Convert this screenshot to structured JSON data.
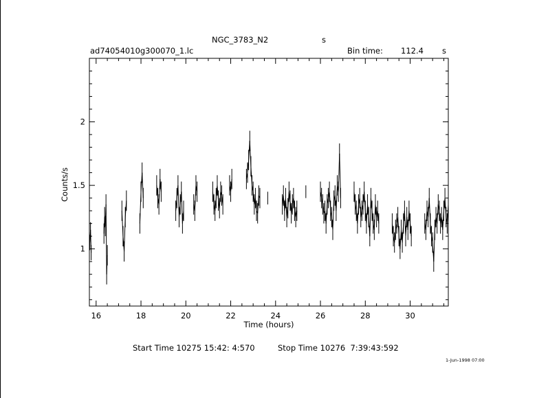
{
  "header": {
    "object": "NGC_3783_N2",
    "object_suffix": "s",
    "file": "ad74054010g300070_1.lc",
    "bin_label": "Bin time:",
    "bin_value": "112.4",
    "bin_unit": "s"
  },
  "footer": {
    "start": "Start Time 10275 15:42: 4:570",
    "stop": "Stop Time 10276  7:39:43:592",
    "stamp": "1-Jun-1998 07:00"
  },
  "chart_data": {
    "type": "line",
    "xlabel": "Time (hours)",
    "ylabel": "Counts/s",
    "xlim": [
      15.7,
      31.7
    ],
    "ylim": [
      0.55,
      2.5
    ],
    "x_ticks": [
      16,
      18,
      20,
      22,
      24,
      26,
      28,
      30
    ],
    "y_ticks": [
      1,
      1.5,
      2
    ],
    "x_tick_labels": [
      "16",
      "18",
      "20",
      "22",
      "24",
      "26",
      "28",
      "30"
    ],
    "y_tick_labels": [
      "1",
      "1.5",
      "2"
    ],
    "grid": false,
    "style": "error-bars",
    "segments": [
      {
        "x": [
          15.72,
          15.75,
          15.78
        ],
        "y": [
          1.05,
          1.15,
          0.97
        ],
        "err": 0.06
      },
      {
        "x": [
          16.35,
          16.38,
          16.41,
          16.44,
          16.47,
          16.5
        ],
        "y": [
          1.12,
          1.25,
          1.18,
          1.35,
          0.8,
          0.95
        ],
        "err": 0.08
      },
      {
        "x": [
          17.15,
          17.2,
          17.25,
          17.3,
          17.35
        ],
        "y": [
          1.3,
          1.1,
          0.98,
          1.25,
          1.38
        ],
        "err": 0.08
      },
      {
        "x": [
          17.95,
          18.0,
          18.05,
          18.1
        ],
        "y": [
          1.2,
          1.45,
          1.6,
          1.4
        ],
        "err": 0.08
      },
      {
        "x": [
          18.7,
          18.75,
          18.8,
          18.85,
          18.9
        ],
        "y": [
          1.5,
          1.4,
          1.35,
          1.55,
          1.45
        ],
        "err": 0.08
      },
      {
        "x": [
          19.55,
          19.6,
          19.65,
          19.7,
          19.75,
          19.8,
          19.85,
          19.9
        ],
        "y": [
          1.3,
          1.4,
          1.5,
          1.25,
          1.35,
          1.45,
          1.2,
          1.3
        ],
        "err": 0.08
      },
      {
        "x": [
          20.35,
          20.4,
          20.45,
          20.5
        ],
        "y": [
          1.35,
          1.3,
          1.5,
          1.45
        ],
        "err": 0.08
      },
      {
        "x": [
          21.2,
          21.25,
          21.3,
          21.35,
          21.4,
          21.45,
          21.5,
          21.55,
          21.6,
          21.65
        ],
        "y": [
          1.45,
          1.35,
          1.3,
          1.4,
          1.5,
          1.38,
          1.32,
          1.45,
          1.42,
          1.35
        ],
        "err": 0.08
      },
      {
        "x": [
          21.95,
          22.0,
          22.05
        ],
        "y": [
          1.5,
          1.45,
          1.55
        ],
        "err": 0.08
      },
      {
        "x": [
          22.7,
          22.75,
          22.8,
          22.85,
          22.9,
          22.95,
          23.0,
          23.05,
          23.1,
          23.15,
          23.2,
          23.25,
          23.3
        ],
        "y": [
          1.55,
          1.6,
          1.7,
          1.85,
          1.65,
          1.5,
          1.45,
          1.35,
          1.4,
          1.3,
          1.28,
          1.42,
          1.4
        ],
        "err": 0.08
      },
      {
        "x": [
          23.65
        ],
        "y": [
          1.4
        ],
        "err": 0.05
      },
      {
        "x": [
          24.3,
          24.35,
          24.4,
          24.45,
          24.5,
          24.55,
          24.6,
          24.65,
          24.7,
          24.75,
          24.8,
          24.85,
          24.9,
          24.95
        ],
        "y": [
          1.35,
          1.42,
          1.3,
          1.4,
          1.25,
          1.32,
          1.45,
          1.38,
          1.28,
          1.35,
          1.4,
          1.3,
          1.25,
          1.3
        ],
        "err": 0.08
      },
      {
        "x": [
          25.35
        ],
        "y": [
          1.45
        ],
        "err": 0.05
      },
      {
        "x": [
          26.0,
          26.05,
          26.1,
          26.15,
          26.2,
          26.25,
          26.3,
          26.35,
          26.4,
          26.45,
          26.5,
          26.55,
          26.6,
          26.65,
          26.7,
          26.75,
          26.8,
          26.85,
          26.9
        ],
        "y": [
          1.45,
          1.4,
          1.35,
          1.28,
          1.3,
          1.2,
          1.35,
          1.4,
          1.45,
          1.3,
          1.25,
          1.15,
          1.38,
          1.42,
          1.3,
          1.5,
          1.45,
          1.75,
          1.4
        ],
        "err": 0.08
      },
      {
        "x": [
          27.5,
          27.55,
          27.6,
          27.65,
          27.7,
          27.75,
          27.8,
          27.85,
          27.9,
          27.95,
          28.0,
          28.05,
          28.1,
          28.15,
          28.2,
          28.25,
          28.3,
          28.35,
          28.4,
          28.45,
          28.5,
          28.55,
          28.6
        ],
        "y": [
          1.45,
          1.35,
          1.3,
          1.2,
          1.35,
          1.4,
          1.25,
          1.3,
          1.35,
          1.45,
          1.3,
          1.2,
          1.35,
          1.25,
          1.1,
          1.4,
          1.3,
          1.2,
          1.15,
          1.35,
          1.25,
          1.3,
          1.2
        ],
        "err": 0.08
      },
      {
        "x": [
          29.2,
          29.25,
          29.3,
          29.35,
          29.4,
          29.45,
          29.5,
          29.55,
          29.6,
          29.65,
          29.7,
          29.75,
          29.8,
          29.85,
          29.9,
          29.95,
          30.0,
          30.05
        ],
        "y": [
          1.2,
          1.1,
          1.05,
          1.15,
          1.2,
          1.25,
          1.1,
          1.0,
          1.15,
          1.05,
          1.2,
          1.3,
          1.1,
          1.25,
          1.15,
          1.3,
          1.2,
          1.1
        ],
        "err": 0.08
      },
      {
        "x": [
          30.65,
          30.7,
          30.75,
          30.8,
          30.85,
          30.9,
          30.95,
          31.0,
          31.05,
          31.1,
          31.15,
          31.2,
          31.25,
          31.3,
          31.35,
          31.4,
          31.45,
          31.5,
          31.55,
          31.6,
          31.65,
          31.7
        ],
        "y": [
          1.2,
          1.15,
          1.3,
          1.25,
          1.4,
          1.2,
          1.1,
          1.05,
          0.9,
          1.15,
          1.25,
          1.2,
          1.35,
          1.3,
          1.2,
          1.25,
          1.15,
          1.3,
          1.4,
          1.25,
          1.2,
          1.35
        ],
        "err": 0.08
      }
    ]
  }
}
